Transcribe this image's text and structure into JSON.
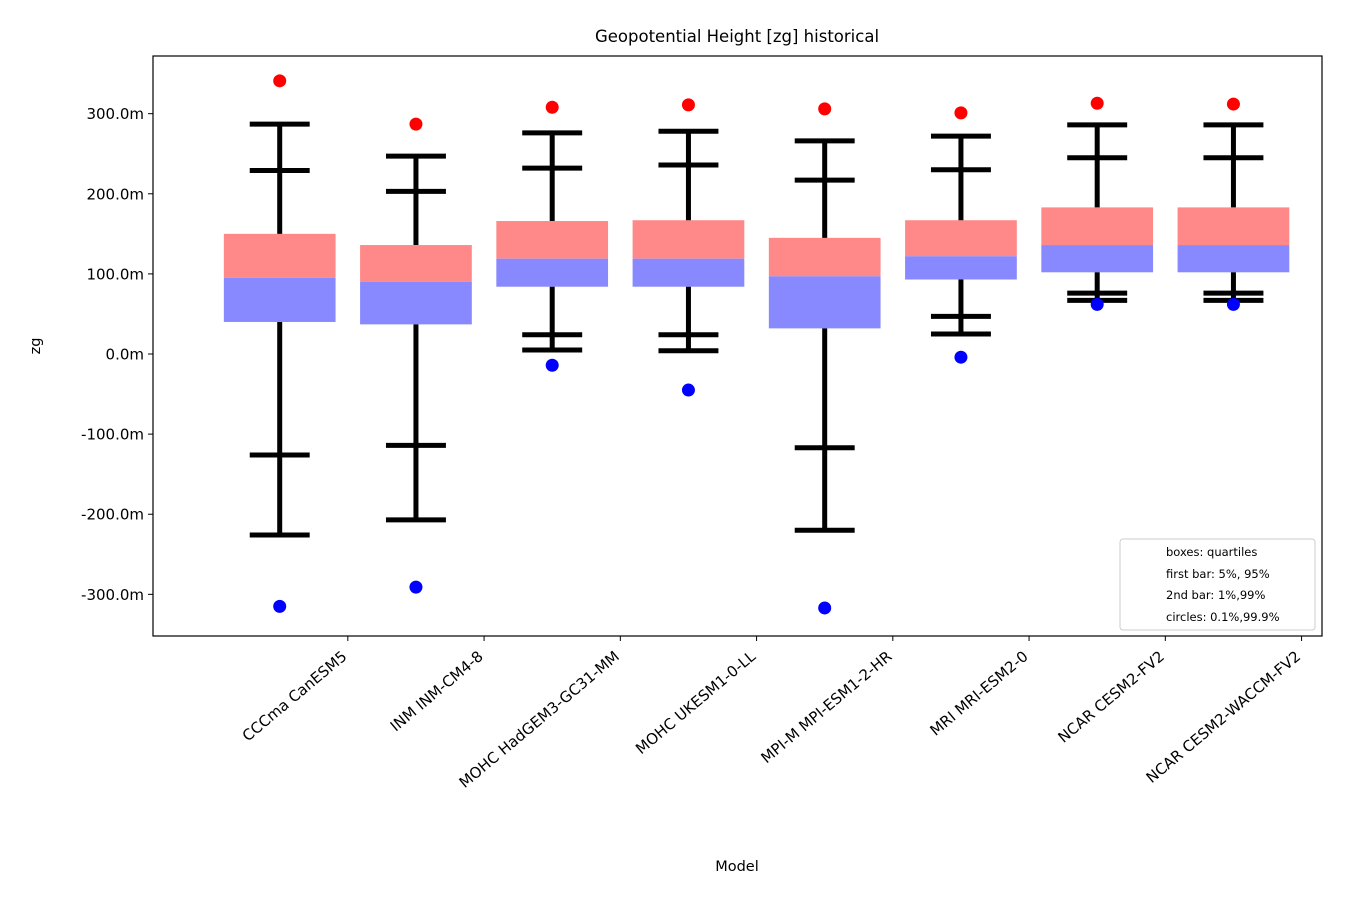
{
  "chart_data": {
    "type": "box",
    "title": "Geopotential Height [zg] historical",
    "xlabel": "Model",
    "ylabel": "zg",
    "ylim": [
      -352,
      372
    ],
    "yticks": [
      -300,
      -200,
      -100,
      0,
      100,
      200,
      300
    ],
    "ytick_labels": [
      "-300.0m",
      "-200.0m",
      "-100.0m",
      "0.0m",
      "100.0m",
      "200.0m",
      "300.0m"
    ],
    "categories": [
      "CCCma CanESM5",
      "INM INM-CM4-8",
      "MOHC HadGEM3-GC31-MM",
      "MOHC UKESM1-0-LL",
      "MPI-M MPI-ESM1-2-HR",
      "MRI MRI-ESM2-0",
      "NCAR CESM2-FV2",
      "NCAR CESM2-WACCM-FV2"
    ],
    "stats": [
      {
        "p0_1": -315,
        "p1": -226,
        "p5": -126,
        "q1": 40,
        "median": 95,
        "q3": 150,
        "p95": 229,
        "p99": 287,
        "p99_9": 341
      },
      {
        "p0_1": -291,
        "p1": -207,
        "p5": -114,
        "q1": 37,
        "median": 90,
        "q3": 136,
        "p95": 203,
        "p99": 247,
        "p99_9": 287
      },
      {
        "p0_1": -14,
        "p1": 5,
        "p5": 24,
        "q1": 84,
        "median": 119,
        "q3": 166,
        "p95": 232,
        "p99": 276,
        "p99_9": 308
      },
      {
        "p0_1": -45,
        "p1": 4,
        "p5": 24,
        "q1": 84,
        "median": 119,
        "q3": 167,
        "p95": 236,
        "p99": 278,
        "p99_9": 311
      },
      {
        "p0_1": -317,
        "p1": -220,
        "p5": -117,
        "q1": 32,
        "median": 97,
        "q3": 145,
        "p95": 217,
        "p99": 266,
        "p99_9": 306
      },
      {
        "p0_1": -4,
        "p1": 25,
        "p5": 47,
        "q1": 93,
        "median": 122,
        "q3": 167,
        "p95": 230,
        "p99": 272,
        "p99_9": 301
      },
      {
        "p0_1": 62,
        "p1": 67,
        "p5": 76,
        "q1": 102,
        "median": 136,
        "q3": 183,
        "p95": 245,
        "p99": 286,
        "p99_9": 313
      },
      {
        "p0_1": 62,
        "p1": 67,
        "p5": 76,
        "q1": 102,
        "median": 136,
        "q3": 183,
        "p95": 245,
        "p99": 286,
        "p99_9": 312
      }
    ],
    "colors": {
      "upper_box": "#ff8888",
      "lower_box": "#8888ff",
      "whisker": "#000000",
      "high_circle": "#ff0000",
      "low_circle": "#0000ff"
    },
    "legend": {
      "placement": "lower-right",
      "entries": [
        "boxes: quartiles",
        "first bar: 5%, 95%",
        "2nd bar: 1%,99%",
        "circles: 0.1%,99.9%"
      ]
    }
  }
}
